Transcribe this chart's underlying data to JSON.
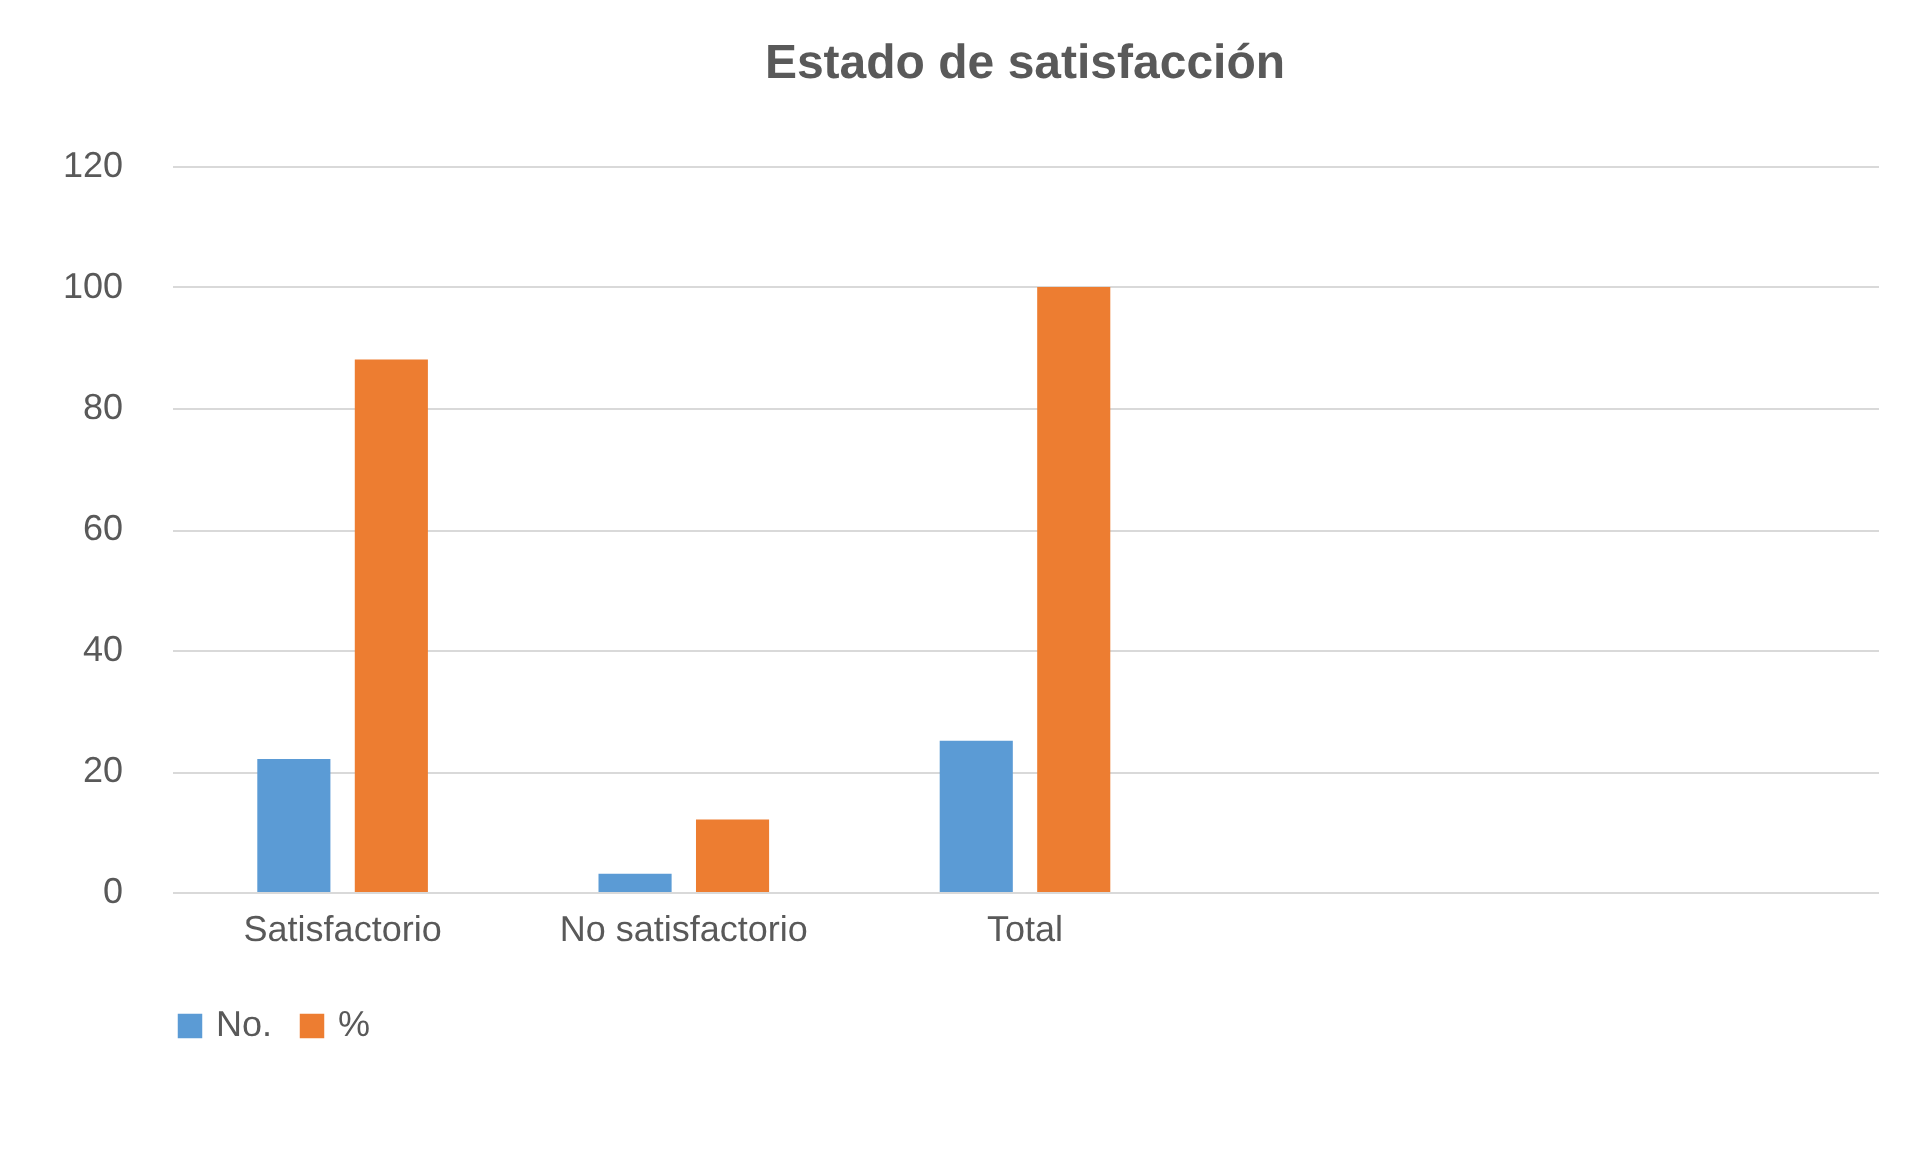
{
  "chart_data": {
    "type": "bar",
    "title": "Estado de satisfacción",
    "categories": [
      "Satisfactorio",
      "No satisfactorio",
      "Total",
      null,
      null
    ],
    "series": [
      {
        "name": "No.",
        "color": "#5b9bd5",
        "values": [
          22,
          3,
          25,
          null,
          null
        ]
      },
      {
        "name": "%",
        "color": "#ed7d31",
        "values": [
          88,
          12,
          100,
          null,
          null
        ]
      }
    ],
    "ylim": [
      0,
      120
    ],
    "yticks": [
      0,
      20,
      40,
      60,
      80,
      100,
      120
    ],
    "grid": "y",
    "legend": "bottom"
  }
}
